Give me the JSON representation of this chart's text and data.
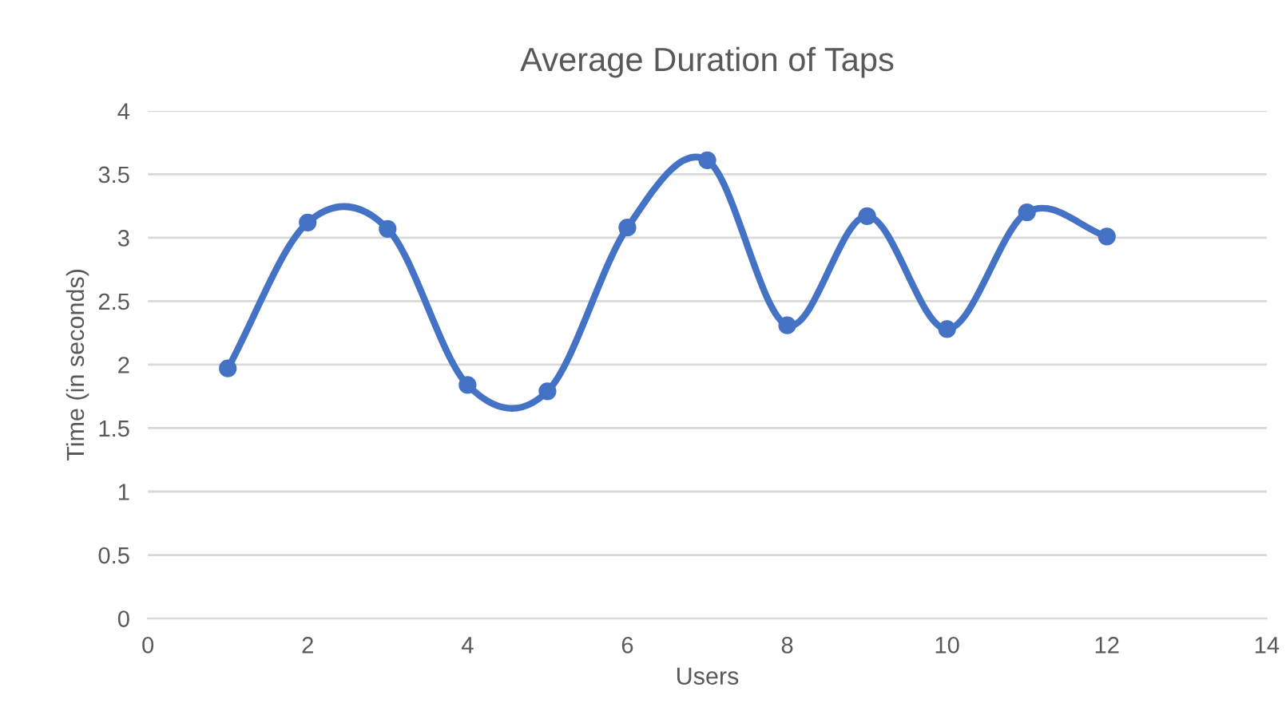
{
  "chart_data": {
    "type": "line",
    "title": "Average Duration of Taps",
    "xlabel": "Users",
    "ylabel": "Time (in seconds)",
    "series": [
      {
        "color": "#4472c4",
        "x": [
          1,
          2,
          3,
          4,
          5,
          6,
          7,
          8,
          9,
          10,
          11,
          12
        ],
        "values": [
          1.97,
          3.12,
          3.07,
          1.84,
          1.79,
          3.08,
          3.61,
          2.31,
          3.17,
          2.28,
          3.2,
          3.01
        ]
      }
    ],
    "xlim": [
      0,
      14
    ],
    "xticks": [
      0,
      2,
      4,
      6,
      8,
      10,
      12,
      14
    ],
    "ylim": [
      0,
      4
    ],
    "yticks": [
      0,
      0.5,
      1,
      1.5,
      2,
      2.5,
      3,
      3.5,
      4
    ],
    "grid": "y",
    "marker": "circle",
    "line_style": "solid"
  }
}
